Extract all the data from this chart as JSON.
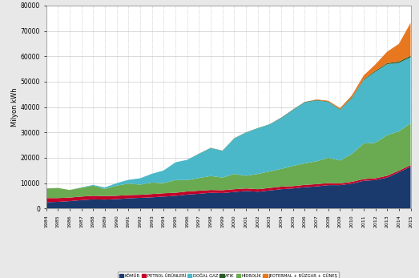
{
  "years": [
    1984,
    1985,
    1986,
    1987,
    1988,
    1989,
    1990,
    1991,
    1992,
    1993,
    1994,
    1995,
    1996,
    1997,
    1998,
    1999,
    2000,
    2001,
    2002,
    2003,
    2004,
    2005,
    2006,
    2007,
    2008,
    2009,
    2010,
    2011,
    2012,
    2013,
    2014,
    2015
  ],
  "komur": [
    2500,
    2600,
    2900,
    3300,
    3600,
    3500,
    3700,
    4000,
    4200,
    4400,
    4700,
    5000,
    5500,
    5800,
    6200,
    6100,
    6500,
    6900,
    6600,
    7100,
    7600,
    7900,
    8400,
    8700,
    9200,
    9200,
    9800,
    10900,
    11200,
    12200,
    14300,
    16500
  ],
  "petrol": [
    1600,
    1500,
    1400,
    1400,
    1400,
    1400,
    1300,
    1300,
    1200,
    1300,
    1300,
    1200,
    1200,
    1200,
    1100,
    1100,
    1100,
    1000,
    1000,
    1000,
    1000,
    900,
    900,
    900,
    800,
    700,
    700,
    700,
    700,
    700,
    600,
    600
  ],
  "hidrolik": [
    3800,
    4000,
    3000,
    3500,
    4000,
    2800,
    4000,
    4500,
    4000,
    4500,
    4000,
    5000,
    4500,
    5000,
    5500,
    5000,
    6000,
    5000,
    6000,
    6500,
    7000,
    8000,
    8500,
    9000,
    10000,
    9000,
    11000,
    14000,
    14000,
    16000,
    15500,
    16500
  ],
  "dogalgaz": [
    0,
    0,
    0,
    100,
    300,
    600,
    1000,
    1500,
    2500,
    3500,
    5000,
    7000,
    8000,
    9500,
    11000,
    10500,
    14000,
    17000,
    18000,
    18500,
    20000,
    22000,
    24000,
    24000,
    22000,
    20000,
    22000,
    25000,
    28000,
    28000,
    27000,
    26000
  ],
  "atik": [
    0,
    0,
    0,
    0,
    0,
    0,
    0,
    0,
    0,
    0,
    0,
    0,
    0,
    100,
    100,
    100,
    100,
    100,
    100,
    100,
    200,
    200,
    200,
    200,
    200,
    200,
    300,
    300,
    400,
    400,
    500,
    600
  ],
  "jeotermal": [
    0,
    0,
    0,
    0,
    0,
    0,
    0,
    0,
    0,
    0,
    0,
    0,
    0,
    0,
    0,
    0,
    0,
    0,
    0,
    0,
    0,
    0,
    0,
    200,
    300,
    500,
    800,
    1500,
    2500,
    4500,
    7000,
    13000
  ],
  "colors": {
    "komur": "#1a3a6e",
    "petrol": "#c0002a",
    "hidrolik": "#6aaa50",
    "dogalgaz": "#4ab8c8",
    "atik": "#2a5a2a",
    "jeotermal": "#e87820"
  },
  "ylabel": "Milyon kWh",
  "ylim": [
    0,
    80000
  ],
  "yticks": [
    0,
    10000,
    20000,
    30000,
    40000,
    50000,
    60000,
    70000,
    80000
  ],
  "legend_labels": [
    "KÖMÜR",
    "PETROL ÜRÜNLERİ",
    "DOĞAL GAZ",
    "ATIK",
    "HİDROLİK",
    "JEOTERMAL + RÜZGAR + GÜNEŞ"
  ],
  "legend_colors": [
    "#1a3a6e",
    "#c0002a",
    "#4ab8c8",
    "#2a5a2a",
    "#6aaa50",
    "#e87820"
  ]
}
